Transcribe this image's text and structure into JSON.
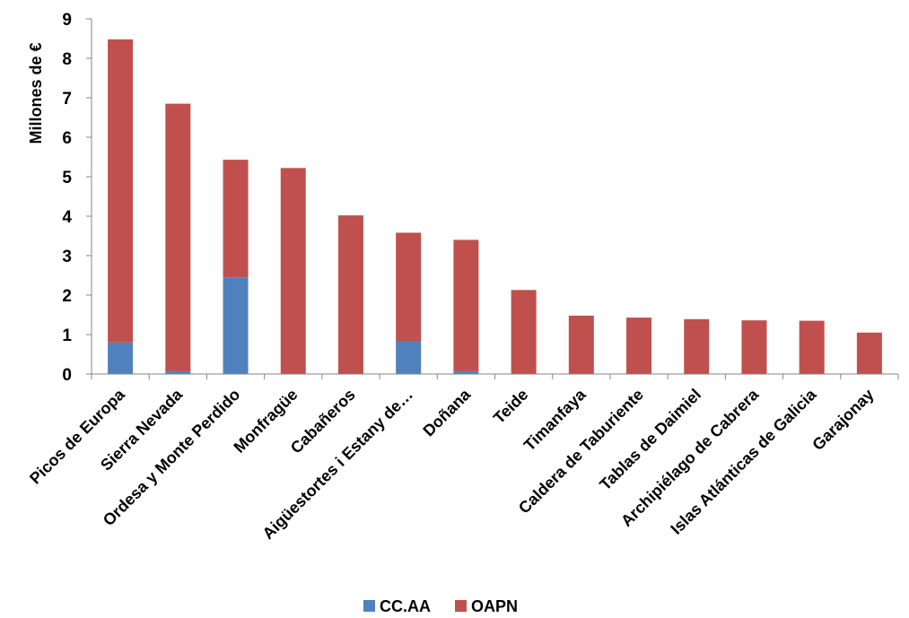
{
  "chart_data": {
    "type": "bar",
    "stacked": true,
    "title": "",
    "xlabel": "",
    "ylabel": "Millones de €",
    "ylim": [
      0,
      9
    ],
    "yticks": [
      "0",
      "1",
      "2",
      "3",
      "4",
      "5",
      "6",
      "7",
      "8",
      "9"
    ],
    "grid": false,
    "legend_position": "bottom",
    "categories": [
      "Picos de Europa",
      "Sierra Nevada",
      "Ordesa y Monte Perdido",
      "Monfragüe",
      "Cabañeros",
      "Aigüestortes i Estany de…",
      "Doñana",
      "Teide",
      "Timanfaya",
      "Caldera de Taburiente",
      "Tablas de Daimiel",
      "Archipiélago de Cabrera",
      "Islas Atlánticas de Galicia",
      "Garajonay"
    ],
    "series": [
      {
        "name": "CC.AA",
        "color": "#4f81bd",
        "values": [
          0.8,
          0.07,
          2.45,
          0,
          0,
          0.83,
          0.07,
          0,
          0,
          0,
          0,
          0,
          0,
          0
        ]
      },
      {
        "name": "OAPN",
        "color": "#c0504d",
        "values": [
          7.68,
          6.78,
          2.98,
          5.22,
          4.02,
          2.75,
          3.33,
          2.13,
          1.48,
          1.43,
          1.39,
          1.36,
          1.35,
          1.05
        ]
      }
    ]
  }
}
